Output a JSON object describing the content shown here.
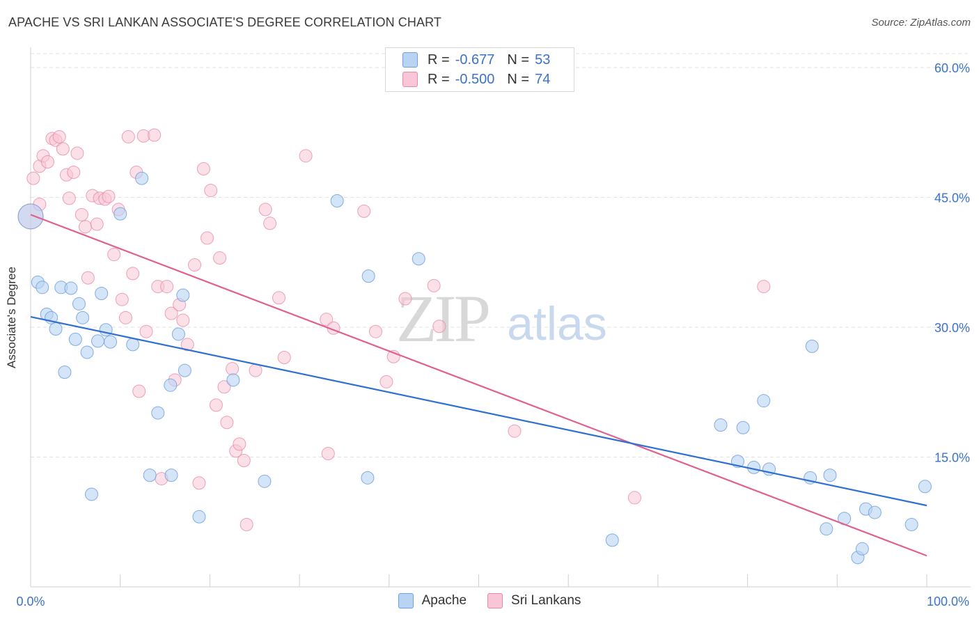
{
  "header": {
    "title": "APACHE VS SRI LANKAN ASSOCIATE'S DEGREE CORRELATION CHART",
    "source": "Source: ZipAtlas.com"
  },
  "legend": {
    "r_label": "R =",
    "n_label": "N =",
    "series": [
      {
        "name": "Apache",
        "r": "-0.677",
        "n": "53"
      },
      {
        "name": "Sri Lankans",
        "r": "-0.500",
        "n": "74"
      }
    ]
  },
  "watermark": {
    "zip": "ZIP",
    "atlas": "atlas"
  },
  "colors": {
    "apache_fill": "#b9d3f3",
    "apache_stroke": "#6f9fde",
    "apache_line": "#2f6fd1",
    "srilankan_fill": "#f8c6d6",
    "srilankan_stroke": "#e889a8",
    "srilankan_line": "#e0608e",
    "tick_label": "#3b73c9",
    "grid": "#e2e2e2"
  },
  "chart_data": {
    "type": "scatter",
    "title": "APACHE VS SRI LANKAN ASSOCIATE'S DEGREE CORRELATION CHART",
    "xlabel": "",
    "ylabel": "Associate's Degree",
    "xlim": [
      0,
      100
    ],
    "ylim": [
      0,
      60
    ],
    "x_tick_labels": [
      "0.0%",
      "100.0%"
    ],
    "y_ticks": [
      15,
      30,
      45,
      60
    ],
    "y_tick_labels": [
      "15.0%",
      "30.0%",
      "45.0%",
      "60.0%"
    ],
    "grid": true,
    "legend_position": "top-center",
    "series": [
      {
        "name": "Apache",
        "trend": {
          "x": [
            0,
            100
          ],
          "y": [
            31.2,
            9.4
          ]
        },
        "points": [
          {
            "x": 0.0,
            "y": 42.8,
            "big": true
          },
          {
            "x": 0.8,
            "y": 35.2
          },
          {
            "x": 1.3,
            "y": 34.6
          },
          {
            "x": 1.8,
            "y": 31.5
          },
          {
            "x": 2.3,
            "y": 31.1
          },
          {
            "x": 2.8,
            "y": 29.8
          },
          {
            "x": 3.4,
            "y": 34.6
          },
          {
            "x": 3.8,
            "y": 24.8
          },
          {
            "x": 4.5,
            "y": 34.5
          },
          {
            "x": 5.0,
            "y": 28.6
          },
          {
            "x": 5.4,
            "y": 32.7
          },
          {
            "x": 5.8,
            "y": 31.1
          },
          {
            "x": 6.3,
            "y": 27.1
          },
          {
            "x": 6.8,
            "y": 10.7
          },
          {
            "x": 7.5,
            "y": 28.4
          },
          {
            "x": 7.9,
            "y": 33.9
          },
          {
            "x": 8.4,
            "y": 29.7
          },
          {
            "x": 8.9,
            "y": 28.3
          },
          {
            "x": 10.0,
            "y": 43.1
          },
          {
            "x": 11.4,
            "y": 28.0
          },
          {
            "x": 12.4,
            "y": 47.2
          },
          {
            "x": 14.2,
            "y": 20.1
          },
          {
            "x": 13.3,
            "y": 12.9
          },
          {
            "x": 15.7,
            "y": 12.9
          },
          {
            "x": 15.6,
            "y": 23.3
          },
          {
            "x": 16.5,
            "y": 29.2
          },
          {
            "x": 17.0,
            "y": 33.7
          },
          {
            "x": 17.2,
            "y": 25.0
          },
          {
            "x": 18.8,
            "y": 8.1
          },
          {
            "x": 22.6,
            "y": 23.9
          },
          {
            "x": 26.1,
            "y": 12.2
          },
          {
            "x": 34.2,
            "y": 44.6
          },
          {
            "x": 37.7,
            "y": 35.9
          },
          {
            "x": 37.6,
            "y": 12.6
          },
          {
            "x": 43.3,
            "y": 37.9
          },
          {
            "x": 64.9,
            "y": 5.4
          },
          {
            "x": 77.0,
            "y": 18.7
          },
          {
            "x": 78.9,
            "y": 14.5
          },
          {
            "x": 79.5,
            "y": 18.4
          },
          {
            "x": 80.7,
            "y": 13.8
          },
          {
            "x": 81.8,
            "y": 21.5
          },
          {
            "x": 82.4,
            "y": 13.6
          },
          {
            "x": 87.2,
            "y": 27.8
          },
          {
            "x": 87.0,
            "y": 12.6
          },
          {
            "x": 88.8,
            "y": 6.7
          },
          {
            "x": 89.2,
            "y": 12.9
          },
          {
            "x": 90.8,
            "y": 7.9
          },
          {
            "x": 92.3,
            "y": 3.4
          },
          {
            "x": 92.8,
            "y": 4.4
          },
          {
            "x": 93.2,
            "y": 9.0
          },
          {
            "x": 94.2,
            "y": 8.6
          },
          {
            "x": 98.3,
            "y": 7.2
          },
          {
            "x": 99.8,
            "y": 11.6
          }
        ]
      },
      {
        "name": "Sri Lankans",
        "trend": {
          "x": [
            0,
            100
          ],
          "y": [
            43.0,
            3.6
          ]
        },
        "points": [
          {
            "x": 0.0,
            "y": 42.8,
            "big": true
          },
          {
            "x": 0.3,
            "y": 47.2
          },
          {
            "x": 1.0,
            "y": 48.6
          },
          {
            "x": 1.4,
            "y": 49.8
          },
          {
            "x": 1.9,
            "y": 49.1
          },
          {
            "x": 2.4,
            "y": 51.8
          },
          {
            "x": 2.8,
            "y": 51.6
          },
          {
            "x": 3.2,
            "y": 52.0
          },
          {
            "x": 3.6,
            "y": 50.6
          },
          {
            "x": 4.0,
            "y": 47.6
          },
          {
            "x": 4.3,
            "y": 44.9
          },
          {
            "x": 4.8,
            "y": 47.9
          },
          {
            "x": 5.2,
            "y": 50.1
          },
          {
            "x": 5.7,
            "y": 43.0
          },
          {
            "x": 6.1,
            "y": 41.6
          },
          {
            "x": 6.4,
            "y": 35.7
          },
          {
            "x": 6.9,
            "y": 45.2
          },
          {
            "x": 7.4,
            "y": 41.9
          },
          {
            "x": 7.7,
            "y": 44.9
          },
          {
            "x": 8.3,
            "y": 44.8
          },
          {
            "x": 8.7,
            "y": 45.1
          },
          {
            "x": 9.3,
            "y": 38.4
          },
          {
            "x": 9.8,
            "y": 43.6
          },
          {
            "x": 10.2,
            "y": 33.2
          },
          {
            "x": 10.6,
            "y": 31.1
          },
          {
            "x": 10.9,
            "y": 52.0
          },
          {
            "x": 11.4,
            "y": 36.2
          },
          {
            "x": 11.8,
            "y": 47.9
          },
          {
            "x": 12.1,
            "y": 22.6
          },
          {
            "x": 12.6,
            "y": 52.1
          },
          {
            "x": 12.9,
            "y": 29.5
          },
          {
            "x": 13.8,
            "y": 52.2
          },
          {
            "x": 14.2,
            "y": 34.7
          },
          {
            "x": 14.6,
            "y": 12.5
          },
          {
            "x": 15.2,
            "y": 34.7
          },
          {
            "x": 15.7,
            "y": 31.6
          },
          {
            "x": 16.1,
            "y": 23.9
          },
          {
            "x": 16.6,
            "y": 32.6
          },
          {
            "x": 17.0,
            "y": 30.8
          },
          {
            "x": 17.5,
            "y": 28.0
          },
          {
            "x": 18.3,
            "y": 37.2
          },
          {
            "x": 18.8,
            "y": 12.0
          },
          {
            "x": 19.3,
            "y": 48.3
          },
          {
            "x": 19.7,
            "y": 40.3
          },
          {
            "x": 20.1,
            "y": 45.8
          },
          {
            "x": 20.7,
            "y": 21.0
          },
          {
            "x": 21.1,
            "y": 38.0
          },
          {
            "x": 21.6,
            "y": 23.1
          },
          {
            "x": 21.9,
            "y": 19.0
          },
          {
            "x": 22.5,
            "y": 25.2
          },
          {
            "x": 22.9,
            "y": 15.7
          },
          {
            "x": 23.3,
            "y": 16.5
          },
          {
            "x": 23.8,
            "y": 14.6
          },
          {
            "x": 24.1,
            "y": 7.2
          },
          {
            "x": 25.1,
            "y": 25.0
          },
          {
            "x": 26.2,
            "y": 43.6
          },
          {
            "x": 26.7,
            "y": 42.0
          },
          {
            "x": 27.7,
            "y": 33.4
          },
          {
            "x": 28.3,
            "y": 26.5
          },
          {
            "x": 30.7,
            "y": 49.8
          },
          {
            "x": 33.0,
            "y": 30.9
          },
          {
            "x": 33.2,
            "y": 15.4
          },
          {
            "x": 33.8,
            "y": 29.9
          },
          {
            "x": 37.2,
            "y": 43.4
          },
          {
            "x": 38.5,
            "y": 29.5
          },
          {
            "x": 39.7,
            "y": 23.7
          },
          {
            "x": 40.5,
            "y": 26.6
          },
          {
            "x": 41.8,
            "y": 33.3
          },
          {
            "x": 45.0,
            "y": 34.8
          },
          {
            "x": 45.6,
            "y": 30.1
          },
          {
            "x": 54.0,
            "y": 18.0
          },
          {
            "x": 67.4,
            "y": 10.3
          },
          {
            "x": 81.8,
            "y": 34.7
          },
          {
            "x": 1.0,
            "y": 44.2
          }
        ]
      }
    ]
  }
}
